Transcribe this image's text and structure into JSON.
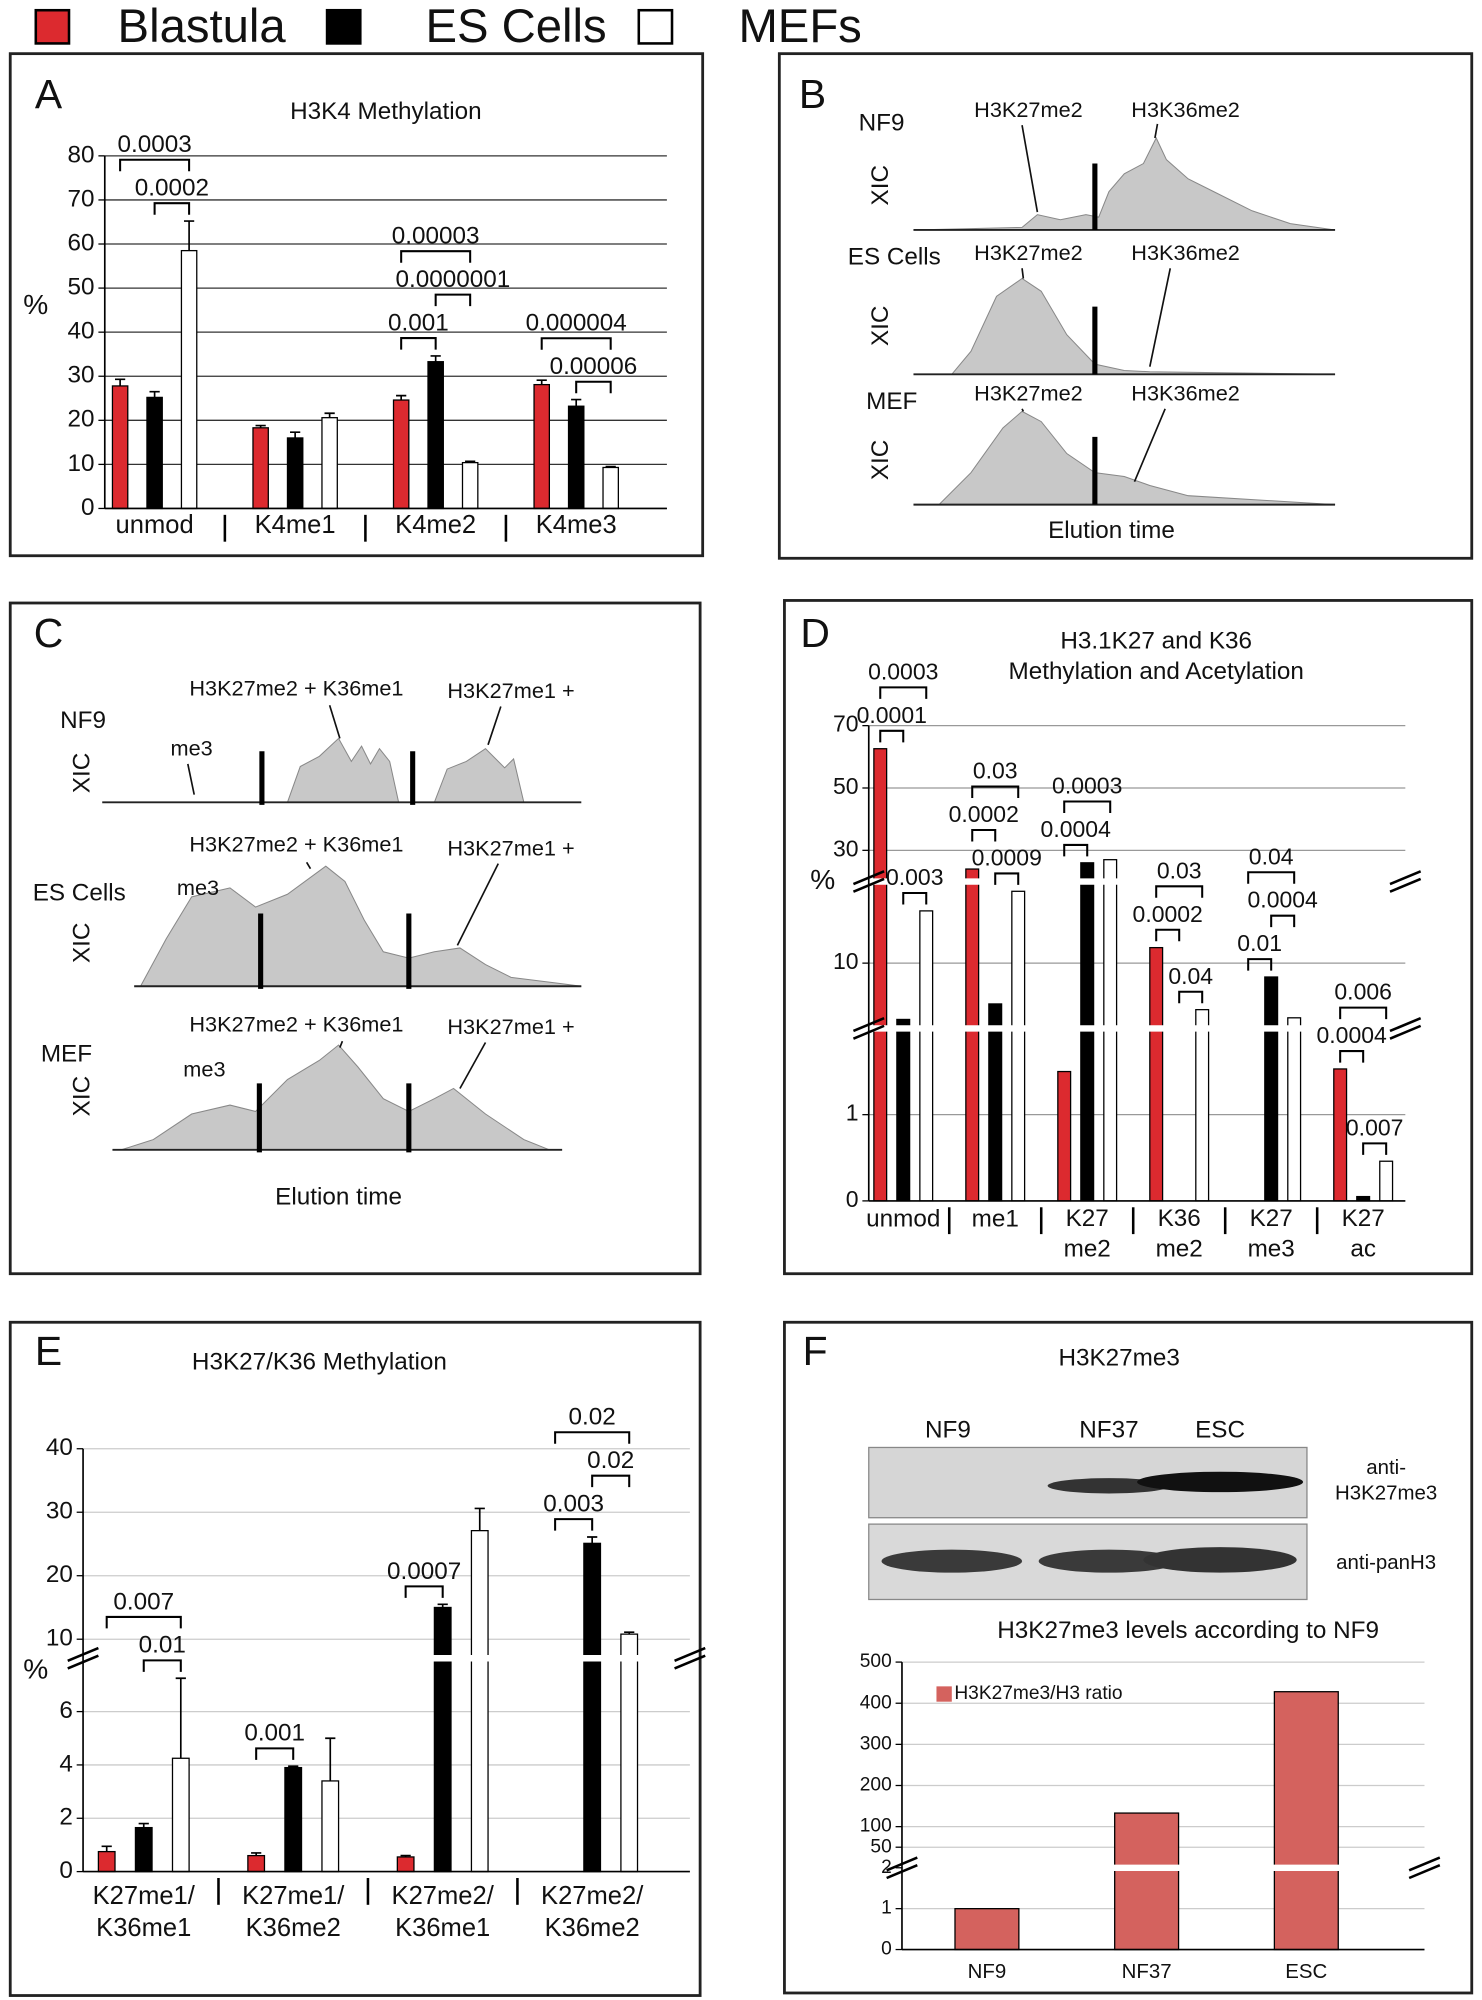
{
  "legend": [
    {
      "name": "Blastula",
      "color": "#dc2a2f"
    },
    {
      "name": "ES Cells",
      "color": "#000000"
    },
    {
      "name": "MEFs",
      "color": "#ffffff"
    }
  ],
  "panels": [
    "A",
    "B",
    "C",
    "D",
    "E",
    "F"
  ],
  "panel_B": {
    "traces": [
      {
        "sample": "NF9",
        "ylabel": "XIC",
        "labels": [
          "H3K27me2",
          "H3K36me2"
        ]
      },
      {
        "sample": "ES Cells",
        "ylabel": "XIC",
        "labels": [
          "H3K27me2",
          "H3K36me2"
        ]
      },
      {
        "sample": "MEF",
        "ylabel": "XIC",
        "labels": [
          "H3K27me2",
          "H3K36me2"
        ]
      }
    ],
    "xlabel": "Elution time"
  },
  "panel_C": {
    "traces": [
      {
        "sample": "NF9",
        "ylabel": "XIC",
        "labels": [
          "me3",
          "H3K27me2 + K36me1",
          "H3K27me1 +"
        ]
      },
      {
        "sample": "ES Cells",
        "ylabel": "XIC",
        "labels": [
          "me3",
          "H3K27me2 + K36me1",
          "H3K27me1 +"
        ]
      },
      {
        "sample": "MEF",
        "ylabel": "XIC",
        "labels": [
          "me3",
          "H3K27me2 + K36me1",
          "H3K27me1 +"
        ]
      }
    ],
    "xlabel": "Elution time"
  },
  "blot": {
    "title": "H3K27me3",
    "lanes": [
      "NF9",
      "NF37",
      "ESC"
    ],
    "rows": [
      "anti-\nH3K27me3",
      "anti-panH3"
    ]
  },
  "chart_data": [
    {
      "type": "bar",
      "title": "H3K4 Methylation",
      "ylabel": "%",
      "categories": [
        "unmod",
        "K4me1",
        "K4me2",
        "K4me3"
      ],
      "series": [
        {
          "color": "#dc2a2f",
          "values": [
            27.8,
            18.3,
            24.6,
            28.1
          ],
          "errors": [
            1.5,
            0.5,
            1.0,
            1.0
          ]
        },
        {
          "color": "#000000",
          "values": [
            25.2,
            16.0,
            33.3,
            23.2
          ],
          "errors": [
            1.3,
            1.3,
            1.3,
            1.5
          ]
        },
        {
          "color": "#ffffff",
          "values": [
            58.5,
            20.6,
            10.4,
            9.3
          ],
          "errors": [
            6.7,
            1.0,
            0.3,
            0.2
          ]
        }
      ],
      "ylim": [
        0,
        80
      ],
      "yticks": [
        0,
        10,
        20,
        30,
        40,
        50,
        60,
        70,
        80
      ],
      "grid": true,
      "brackets": [
        {
          "category": 0,
          "pair": [
            1,
            2
          ],
          "label": "0.0002"
        },
        {
          "category": 0,
          "pair": [
            0,
            2
          ],
          "label": "0.0003"
        },
        {
          "category": 2,
          "pair": [
            0,
            1
          ],
          "label": "0.001"
        },
        {
          "category": 2,
          "pair": [
            1,
            2
          ],
          "label": "0.0000001"
        },
        {
          "category": 2,
          "pair": [
            0,
            2
          ],
          "label": "0.00003"
        },
        {
          "category": 3,
          "pair": [
            1,
            2
          ],
          "label": "0.00006"
        },
        {
          "category": 3,
          "pair": [
            0,
            2
          ],
          "label": "0.000004"
        }
      ]
    },
    {
      "type": "bar",
      "title": "H3.1K27 and K36\nMethylation and Acetylation",
      "ylabel": "%",
      "categories": [
        "unmod",
        "me1",
        "K27\nme2",
        "K36\nme2",
        "K27\nme3",
        "K27\nac"
      ],
      "series": [
        {
          "color": "#dc2a2f",
          "values": [
            62.6,
            24,
            1.5,
            11.9,
            null,
            1.53
          ]
        },
        {
          "color": "#000000",
          "values": [
            3.1,
            5.0,
            26,
            null,
            8.3,
            0.05
          ]
        },
        {
          "color": "#ffffff",
          "values": [
            16.4,
            18.8,
            27,
            4.3,
            3.3,
            0.46
          ]
        }
      ],
      "y_segments": [
        {
          "ylim": [
            0,
            2
          ],
          "yticks": [
            0,
            1
          ]
        },
        {
          "ylim": [
            2,
            20
          ],
          "yticks": [
            10
          ]
        },
        {
          "ylim": [
            20,
            70
          ],
          "yticks": [
            30,
            50,
            70
          ]
        }
      ],
      "grid": true,
      "brackets": [
        {
          "category": 0,
          "pair": [
            1,
            2
          ],
          "label": "0.003"
        },
        {
          "category": 0,
          "pair": [
            0,
            1
          ],
          "label": "0.0001"
        },
        {
          "category": 0,
          "pair": [
            0,
            2
          ],
          "label": "0.0003"
        },
        {
          "category": 1,
          "pair": [
            1,
            2
          ],
          "label": "0.0009"
        },
        {
          "category": 1,
          "pair": [
            0,
            1
          ],
          "label": "0.0002"
        },
        {
          "category": 1,
          "pair": [
            0,
            2
          ],
          "label": "0.03"
        },
        {
          "category": 2,
          "pair": [
            0,
            1
          ],
          "label": "0.0004"
        },
        {
          "category": 2,
          "pair": [
            0,
            2
          ],
          "label": "0.0003"
        },
        {
          "category": 3,
          "pair": [
            1,
            2
          ],
          "label": "0.04"
        },
        {
          "category": 3,
          "pair": [
            0,
            1
          ],
          "label": "0.0002"
        },
        {
          "category": 3,
          "pair": [
            0,
            2
          ],
          "label": "0.03"
        },
        {
          "category": 4,
          "pair": [
            0,
            1
          ],
          "label": "0.01"
        },
        {
          "category": 4,
          "pair": [
            1,
            2
          ],
          "label": "0.0004"
        },
        {
          "category": 4,
          "pair": [
            0,
            2
          ],
          "label": "0.04"
        },
        {
          "category": 5,
          "pair": [
            1,
            2
          ],
          "label": "0.007"
        },
        {
          "category": 5,
          "pair": [
            0,
            1
          ],
          "label": "0.0004"
        },
        {
          "category": 5,
          "pair": [
            0,
            2
          ],
          "label": "0.006"
        }
      ]
    },
    {
      "type": "bar",
      "title": "H3K27/K36 Methylation",
      "ylabel": "%",
      "categories": [
        "K27me1/\nK36me1",
        "K27me1/\nK36me2",
        "K27me2/\nK36me1",
        "K27me2/\nK36me2"
      ],
      "series": [
        {
          "color": "#dc2a2f",
          "values": [
            0.75,
            0.6,
            0.55,
            null
          ],
          "errors": [
            0.2,
            0.1,
            0.05,
            null
          ]
        },
        {
          "color": "#000000",
          "values": [
            1.65,
            3.9,
            15,
            25.1
          ],
          "errors": [
            0.15,
            0.05,
            0.5,
            1
          ]
        },
        {
          "color": "#ffffff",
          "values": [
            4.25,
            3.4,
            27.1,
            10.8
          ],
          "errors": [
            3,
            1.6,
            3.5,
            0.3
          ]
        }
      ],
      "y_segments": [
        {
          "ylim": [
            0,
            8
          ],
          "yticks": [
            0,
            2,
            4,
            6
          ]
        },
        {
          "ylim": [
            7,
            40
          ],
          "yticks": [
            10,
            20,
            30,
            40
          ]
        }
      ],
      "grid": true,
      "brackets": [
        {
          "category": 0,
          "pair": [
            1,
            2
          ],
          "label": "0.01"
        },
        {
          "category": 0,
          "pair": [
            0,
            2
          ],
          "label": "0.007"
        },
        {
          "category": 1,
          "pair": [
            0,
            1
          ],
          "label": "0.001"
        },
        {
          "category": 2,
          "pair": [
            0,
            1
          ],
          "label": "0.0007"
        },
        {
          "category": 3,
          "pair": [
            0,
            1
          ],
          "label": "0.003"
        },
        {
          "category": 3,
          "pair": [
            1,
            2
          ],
          "label": "0.02"
        },
        {
          "category": 3,
          "pair": [
            0,
            2
          ],
          "label": "0.02"
        }
      ]
    },
    {
      "type": "bar",
      "title": "H3K27me3 levels according to NF9",
      "categories": [
        "NF9",
        "NF37",
        "ESC"
      ],
      "series": [
        {
          "name": "H3K27me3/H3 ratio",
          "color": "#d4625e",
          "values": [
            1,
            133,
            428
          ]
        }
      ],
      "y_segments": [
        {
          "ylim": [
            0,
            2
          ],
          "yticks": [
            0,
            1,
            2
          ]
        },
        {
          "ylim": [
            0,
            500
          ],
          "yticks": [
            50,
            100,
            200,
            300,
            400,
            500
          ]
        }
      ],
      "grid": true
    }
  ]
}
